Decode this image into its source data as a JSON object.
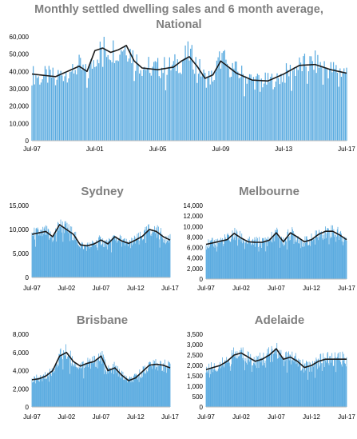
{
  "colors": {
    "bars": "#5aabe0",
    "average_line": "#1a1a1a",
    "title": "#7f7f7f",
    "axis": "#bfbfbf"
  },
  "chart_data": [
    {
      "type": "bar",
      "title": "Monthly settled dwelling sales and 6 month average, National",
      "title_lines": [
        "Monthly settled dwelling sales and 6 month average,",
        "National"
      ],
      "x_tick_labels": [
        "Jul-97",
        "Jul-01",
        "Jul-05",
        "Jul-09",
        "Jul-13",
        "Jul-17"
      ],
      "y_tick_labels": [
        "0",
        "10,000",
        "20,000",
        "30,000",
        "40,000",
        "50,000",
        "60,000"
      ],
      "ylim": [
        0,
        60000
      ],
      "series": [
        {
          "kind": "bar",
          "x": [
            "Jul-97",
            "Jan-99",
            "Jul-00",
            "Jan-01",
            "Jul-01",
            "Jan-02",
            "Jul-02",
            "Jan-03",
            "Jul-03",
            "Jan-04",
            "Jul-04",
            "Jul-05",
            "Jul-06",
            "Jan-07",
            "Jul-07",
            "Jan-08",
            "Jul-08",
            "Jan-09",
            "Jul-09",
            "Jul-10",
            "Jul-11",
            "Jul-12",
            "Jul-13",
            "Jul-14",
            "Jul-15",
            "Jul-16",
            "Jul-17"
          ],
          "values": [
            38000,
            37000,
            43000,
            38000,
            48000,
            54000,
            52000,
            54000,
            55000,
            48000,
            43000,
            42000,
            43000,
            47000,
            50000,
            44000,
            36000,
            37000,
            48000,
            40000,
            35000,
            34000,
            38000,
            43000,
            45000,
            41000,
            40000
          ]
        },
        {
          "kind": "line",
          "name_hidden": true,
          "x": [
            "Jul-97",
            "Jan-99",
            "Jul-00",
            "Jan-01",
            "Jul-01",
            "Jan-02",
            "Jul-02",
            "Jan-03",
            "Jul-03",
            "Jan-04",
            "Jul-04",
            "Jul-05",
            "Jul-06",
            "Jan-07",
            "Jul-07",
            "Jan-08",
            "Jul-08",
            "Jan-09",
            "Jul-09",
            "Jul-10",
            "Jul-11",
            "Jul-12",
            "Jul-13",
            "Jul-14",
            "Jul-15",
            "Jul-16",
            "Jul-17"
          ],
          "values": [
            38500,
            37000,
            43000,
            40000,
            52000,
            53500,
            51000,
            52500,
            55000,
            46000,
            42000,
            41000,
            42500,
            46000,
            48500,
            43000,
            36000,
            38000,
            46000,
            39000,
            35000,
            34500,
            38500,
            43500,
            44000,
            41000,
            39000
          ]
        }
      ]
    },
    {
      "type": "bar",
      "title": "Sydney",
      "x_tick_labels": [
        "Jul-97",
        "Jul-02",
        "Jul-07",
        "Jul-12",
        "Jul-17"
      ],
      "y_tick_labels": [
        "0",
        "5,000",
        "10,000",
        "15,000"
      ],
      "ylim": [
        0,
        15000
      ],
      "series": [
        {
          "kind": "bar",
          "x": [
            "Jul-97",
            "Jul-98",
            "Jul-99",
            "Jul-00",
            "Jul-01",
            "Jul-02",
            "Jul-03",
            "Jul-04",
            "Jul-05",
            "Jul-06",
            "Jul-07",
            "Jul-08",
            "Jul-09",
            "Jul-10",
            "Jul-11",
            "Jul-12",
            "Jul-13",
            "Jul-14",
            "Jul-15",
            "Jul-16",
            "Jul-17"
          ],
          "values": [
            9000,
            9200,
            9500,
            8200,
            11000,
            10200,
            9000,
            6800,
            6500,
            7000,
            7800,
            6800,
            8500,
            7600,
            7000,
            7800,
            8500,
            10000,
            9800,
            8500,
            7800
          ]
        },
        {
          "kind": "line",
          "x": [
            "Jul-97",
            "Jul-98",
            "Jul-99",
            "Jul-00",
            "Jul-01",
            "Jul-02",
            "Jul-03",
            "Jul-04",
            "Jul-05",
            "Jul-06",
            "Jul-07",
            "Jul-08",
            "Jul-09",
            "Jul-10",
            "Jul-11",
            "Jul-12",
            "Jul-13",
            "Jul-14",
            "Jul-15",
            "Jul-16",
            "Jul-17"
          ],
          "values": [
            9000,
            9300,
            9600,
            8500,
            11000,
            10000,
            9000,
            6800,
            6600,
            7000,
            7800,
            7000,
            8500,
            7600,
            7100,
            7800,
            8600,
            10000,
            9600,
            8500,
            7800
          ]
        }
      ]
    },
    {
      "type": "bar",
      "title": "Melbourne",
      "x_tick_labels": [
        "Jul-97",
        "Jul-02",
        "Jul-07",
        "Jul-12",
        "Jul-17"
      ],
      "y_tick_labels": [
        "0",
        "2,000",
        "4,000",
        "6,000",
        "8,000",
        "10,000",
        "12,000",
        "14,000"
      ],
      "ylim": [
        0,
        14000
      ],
      "series": [
        {
          "kind": "bar",
          "x": [
            "Jul-97",
            "Jul-98",
            "Jul-99",
            "Jul-00",
            "Jul-01",
            "Jul-02",
            "Jul-03",
            "Jul-04",
            "Jul-05",
            "Jul-06",
            "Jul-07",
            "Jul-08",
            "Jul-09",
            "Jul-10",
            "Jul-11",
            "Jul-12",
            "Jul-13",
            "Jul-14",
            "Jul-15",
            "Jul-16",
            "Jul-17"
          ],
          "values": [
            6500,
            6800,
            7200,
            7600,
            8600,
            7800,
            7000,
            7000,
            7000,
            7500,
            8800,
            7000,
            8800,
            8000,
            7000,
            7500,
            8500,
            9000,
            9200,
            8500,
            7500
          ]
        },
        {
          "kind": "line",
          "x": [
            "Jul-97",
            "Jul-98",
            "Jul-99",
            "Jul-00",
            "Jul-01",
            "Jul-02",
            "Jul-03",
            "Jul-04",
            "Jul-05",
            "Jul-06",
            "Jul-07",
            "Jul-08",
            "Jul-09",
            "Jul-10",
            "Jul-11",
            "Jul-12",
            "Jul-13",
            "Jul-14",
            "Jul-15",
            "Jul-16",
            "Jul-17"
          ],
          "values": [
            6600,
            6900,
            7200,
            7500,
            8700,
            7800,
            7100,
            7000,
            7000,
            7400,
            8800,
            7100,
            8800,
            8000,
            7100,
            7500,
            8500,
            9100,
            9100,
            8400,
            7500
          ]
        }
      ]
    },
    {
      "type": "bar",
      "title": "Brisbane",
      "x_tick_labels": [
        "Jul-97",
        "Jul-02",
        "Jul-07",
        "Jul-12",
        "Jul-17"
      ],
      "y_tick_labels": [
        "0",
        "2,000",
        "4,000",
        "6,000",
        "8,000"
      ],
      "ylim": [
        0,
        8000
      ],
      "series": [
        {
          "kind": "bar",
          "x": [
            "Jul-97",
            "Jul-98",
            "Jul-99",
            "Jul-00",
            "Jul-01",
            "Jul-02",
            "Jul-03",
            "Jul-04",
            "Jul-05",
            "Jul-06",
            "Jul-07",
            "Jul-08",
            "Jul-09",
            "Jul-10",
            "Jul-11",
            "Jul-12",
            "Jul-13",
            "Jul-14",
            "Jul-15",
            "Jul-16",
            "Jul-17"
          ],
          "values": [
            3000,
            3100,
            3400,
            4000,
            5600,
            6000,
            5000,
            4500,
            4800,
            5000,
            5600,
            4000,
            4300,
            3500,
            2900,
            3200,
            3900,
            4600,
            4800,
            4600,
            4300
          ]
        },
        {
          "kind": "line",
          "x": [
            "Jul-97",
            "Jul-98",
            "Jul-99",
            "Jul-00",
            "Jul-01",
            "Jul-02",
            "Jul-03",
            "Jul-04",
            "Jul-05",
            "Jul-06",
            "Jul-07",
            "Jul-08",
            "Jul-09",
            "Jul-10",
            "Jul-11",
            "Jul-12",
            "Jul-13",
            "Jul-14",
            "Jul-15",
            "Jul-16",
            "Jul-17"
          ],
          "values": [
            3000,
            3100,
            3400,
            4000,
            5600,
            6000,
            5000,
            4500,
            4800,
            5000,
            5600,
            4000,
            4300,
            3500,
            2900,
            3200,
            3900,
            4600,
            4700,
            4600,
            4300
          ]
        }
      ]
    },
    {
      "type": "bar",
      "title": "Adelaide",
      "x_tick_labels": [
        "Jul-97",
        "Jul-02",
        "Jul-07",
        "Jul-12",
        "Jul-17"
      ],
      "y_tick_labels": [
        "0",
        "500",
        "1,000",
        "1,500",
        "2,000",
        "2,500",
        "3,000",
        "3,500"
      ],
      "ylim": [
        0,
        3500
      ],
      "series": [
        {
          "kind": "bar",
          "x": [
            "Jul-97",
            "Jul-98",
            "Jul-99",
            "Jul-00",
            "Jul-01",
            "Jul-02",
            "Jul-03",
            "Jul-04",
            "Jul-05",
            "Jul-06",
            "Jul-07",
            "Jul-08",
            "Jul-09",
            "Jul-10",
            "Jul-11",
            "Jul-12",
            "Jul-13",
            "Jul-14",
            "Jul-15",
            "Jul-16",
            "Jul-17"
          ],
          "values": [
            1800,
            1900,
            2000,
            2200,
            2500,
            2600,
            2400,
            2200,
            2300,
            2500,
            2800,
            2300,
            2400,
            2200,
            1900,
            2000,
            2200,
            2300,
            2300,
            2300,
            2300
          ]
        },
        {
          "kind": "line",
          "x": [
            "Jul-97",
            "Jul-98",
            "Jul-99",
            "Jul-00",
            "Jul-01",
            "Jul-02",
            "Jul-03",
            "Jul-04",
            "Jul-05",
            "Jul-06",
            "Jul-07",
            "Jul-08",
            "Jul-09",
            "Jul-10",
            "Jul-11",
            "Jul-12",
            "Jul-13",
            "Jul-14",
            "Jul-15",
            "Jul-16",
            "Jul-17"
          ],
          "values": [
            1800,
            1900,
            2000,
            2200,
            2500,
            2600,
            2400,
            2200,
            2300,
            2500,
            2800,
            2300,
            2400,
            2200,
            1900,
            2000,
            2200,
            2300,
            2300,
            2300,
            2300
          ]
        }
      ]
    }
  ]
}
